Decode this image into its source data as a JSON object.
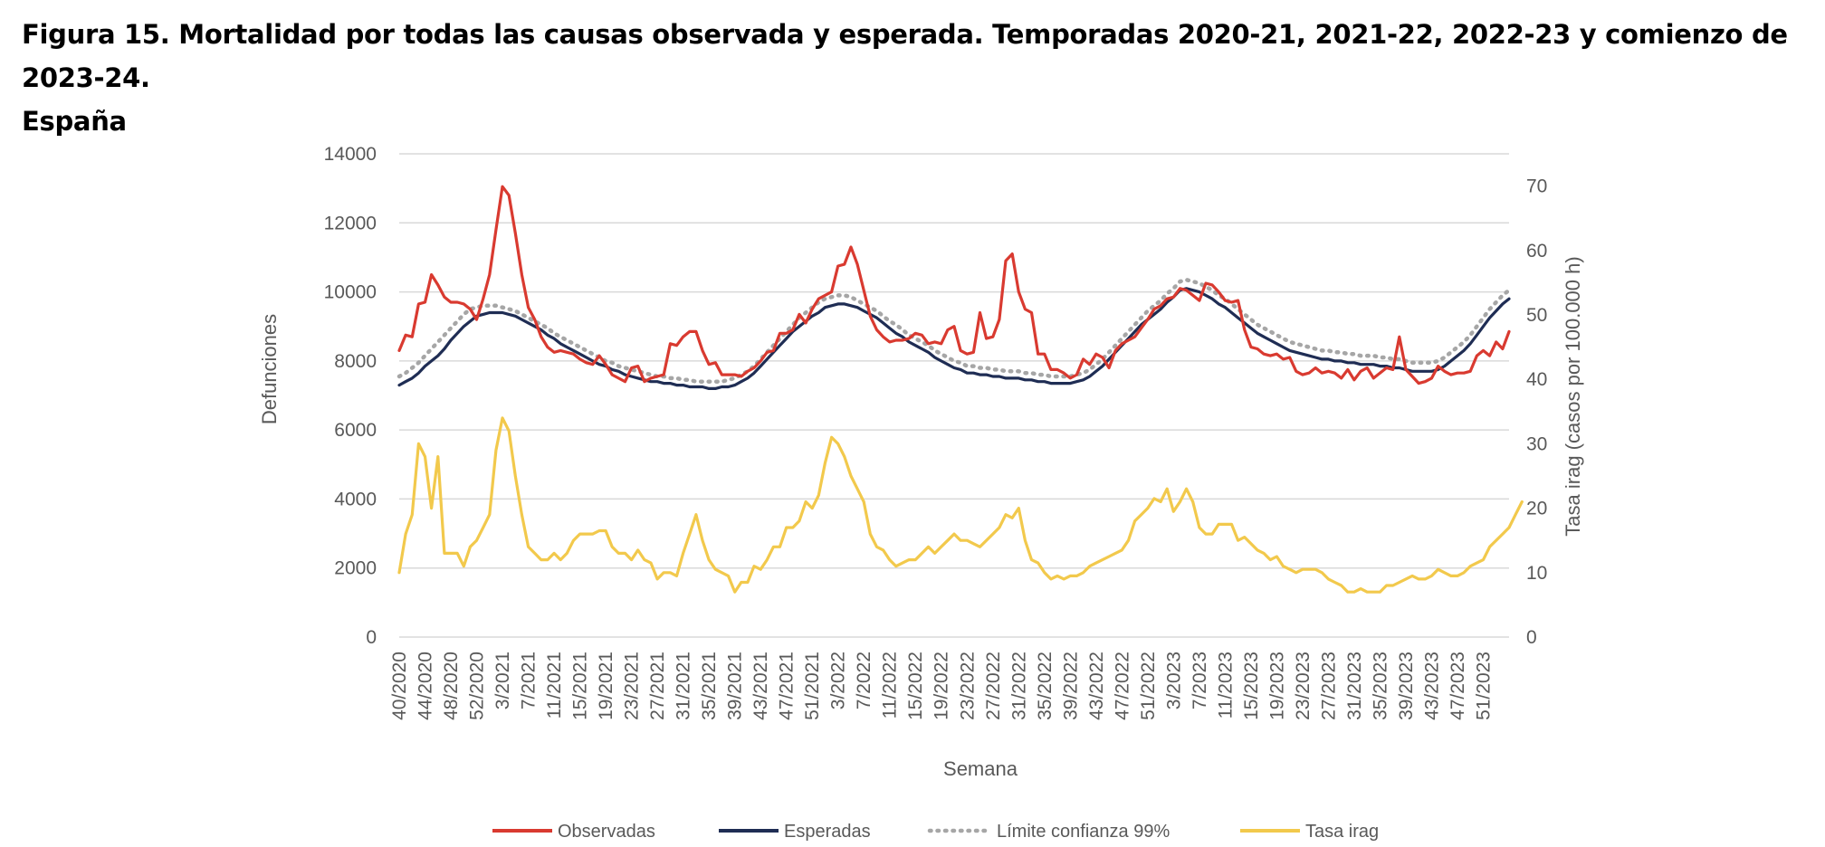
{
  "figure": {
    "title_line1": "Figura 15. Mortalidad por todas las causas observada y esperada. Temporadas 2020-21, 2021-22, 2022-23 y comienzo de 2023-24.",
    "title_line2": "España"
  },
  "chart_data": {
    "type": "line",
    "xlabel": "Semana",
    "ylabel": "Defunciones",
    "y2label": "Tasa irag (casos por 100.000 h)",
    "ylim": [
      0,
      14000
    ],
    "y2lim": [
      0,
      75
    ],
    "yticks": [
      0,
      2000,
      4000,
      6000,
      8000,
      10000,
      12000,
      14000
    ],
    "y2ticks": [
      0,
      10,
      20,
      30,
      40,
      50,
      60,
      70
    ],
    "x_first": "40/2020",
    "x_tick_labels": [
      "40/2020",
      "44/2020",
      "48/2020",
      "52/2020",
      "3/2021",
      "7/2021",
      "11/2021",
      "15/2021",
      "19/2021",
      "23/2021",
      "27/2021",
      "31/2021",
      "35/2021",
      "39/2021",
      "43/2021",
      "47/2021",
      "51/2021",
      "3/2022",
      "7/2022",
      "11/2022",
      "15/2022",
      "19/2022",
      "23/2022",
      "27/2022",
      "31/2022",
      "35/2022",
      "39/2022",
      "43/2022",
      "47/2022",
      "51/2022",
      "3/2023",
      "7/2023",
      "11/2023",
      "15/2023",
      "19/2023",
      "23/2023",
      "27/2023",
      "31/2023",
      "35/2023",
      "39/2023",
      "43/2023",
      "47/2023",
      "51/2023"
    ],
    "grid": true,
    "legend_position": "bottom",
    "colors": {
      "observadas": "#d93a30",
      "esperadas": "#1f2d54",
      "limite": "#a6a6a6",
      "tasa": "#f2c94c",
      "grid": "#d9d9d9",
      "tick": "#595959"
    },
    "series": [
      {
        "name": "Observadas",
        "axis": "left",
        "style": "solid",
        "values": [
          8300,
          8750,
          8700,
          9650,
          9700,
          10500,
          10200,
          9850,
          9700,
          9700,
          9650,
          9500,
          9200,
          9800,
          10500,
          11800,
          13050,
          12800,
          11700,
          10500,
          9550,
          9200,
          8700,
          8400,
          8250,
          8300,
          8250,
          8200,
          8050,
          7950,
          7900,
          8150,
          7900,
          7600,
          7500,
          7400,
          7800,
          7850,
          7400,
          7500,
          7550,
          7600,
          8500,
          8450,
          8700,
          8850,
          8850,
          8300,
          7900,
          7950,
          7600,
          7600,
          7600,
          7550,
          7700,
          7800,
          8000,
          8250,
          8300,
          8800,
          8800,
          8900,
          9350,
          9100,
          9500,
          9800,
          9900,
          10000,
          10750,
          10800,
          11300,
          10800,
          10050,
          9300,
          8900,
          8700,
          8550,
          8600,
          8600,
          8650,
          8800,
          8750,
          8500,
          8550,
          8500,
          8900,
          9000,
          8300,
          8200,
          8250,
          9400,
          8650,
          8700,
          9200,
          10900,
          11100,
          10000,
          9500,
          9400,
          8200,
          8200,
          7750,
          7750,
          7650,
          7500,
          7600,
          8050,
          7900,
          8200,
          8100,
          7800,
          8300,
          8500,
          8600,
          8700,
          8950,
          9200,
          9500,
          9600,
          9800,
          9850,
          10100,
          10050,
          9900,
          9750,
          10250,
          10200,
          10000,
          9750,
          9700,
          9750,
          8900,
          8400,
          8350,
          8200,
          8150,
          8200,
          8050,
          8100,
          7700,
          7600,
          7650,
          7800,
          7650,
          7700,
          7650,
          7500,
          7750,
          7450,
          7700,
          7800,
          7500,
          7650,
          7800,
          7750,
          8700,
          7750,
          7550,
          7350,
          7400,
          7500,
          7850,
          7700,
          7600,
          7650,
          7650,
          7700,
          8150,
          8300,
          8150,
          8550,
          8350,
          8850
        ]
      },
      {
        "name": "Esperadas",
        "axis": "left",
        "style": "solid",
        "values": [
          7300,
          7400,
          7500,
          7650,
          7850,
          8000,
          8150,
          8350,
          8600,
          8800,
          9000,
          9150,
          9300,
          9350,
          9400,
          9400,
          9400,
          9350,
          9300,
          9200,
          9100,
          9000,
          8900,
          8750,
          8650,
          8500,
          8400,
          8300,
          8200,
          8100,
          8000,
          7900,
          7850,
          7750,
          7700,
          7600,
          7550,
          7500,
          7450,
          7400,
          7400,
          7350,
          7350,
          7300,
          7300,
          7250,
          7250,
          7250,
          7200,
          7200,
          7250,
          7250,
          7300,
          7400,
          7500,
          7650,
          7850,
          8050,
          8250,
          8450,
          8650,
          8850,
          9000,
          9150,
          9300,
          9400,
          9550,
          9600,
          9650,
          9650,
          9600,
          9550,
          9450,
          9350,
          9250,
          9100,
          8950,
          8800,
          8700,
          8550,
          8450,
          8350,
          8250,
          8100,
          8000,
          7900,
          7800,
          7750,
          7650,
          7650,
          7600,
          7600,
          7550,
          7550,
          7500,
          7500,
          7500,
          7450,
          7450,
          7400,
          7400,
          7350,
          7350,
          7350,
          7350,
          7400,
          7450,
          7550,
          7700,
          7850,
          8050,
          8250,
          8450,
          8650,
          8850,
          9050,
          9200,
          9350,
          9500,
          9700,
          9850,
          10050,
          10100,
          10050,
          10000,
          9900,
          9800,
          9650,
          9550,
          9400,
          9250,
          9100,
          8950,
          8800,
          8700,
          8600,
          8500,
          8400,
          8300,
          8250,
          8200,
          8150,
          8100,
          8050,
          8050,
          8000,
          8000,
          7950,
          7950,
          7900,
          7900,
          7900,
          7850,
          7850,
          7800,
          7800,
          7750,
          7700,
          7700,
          7700,
          7700,
          7750,
          7850,
          8000,
          8150,
          8300,
          8500,
          8750,
          9000,
          9250,
          9450,
          9650,
          9800
        ]
      },
      {
        "name": "Límite confianza 99%",
        "axis": "left",
        "style": "dotted",
        "values": [
          7550,
          7650,
          7800,
          7950,
          8150,
          8350,
          8550,
          8750,
          8950,
          9150,
          9350,
          9500,
          9550,
          9600,
          9600,
          9600,
          9550,
          9500,
          9450,
          9350,
          9250,
          9150,
          9050,
          8950,
          8800,
          8700,
          8600,
          8500,
          8400,
          8300,
          8200,
          8100,
          8000,
          7950,
          7850,
          7800,
          7750,
          7700,
          7650,
          7600,
          7550,
          7550,
          7500,
          7500,
          7450,
          7450,
          7400,
          7400,
          7400,
          7400,
          7400,
          7450,
          7500,
          7600,
          7700,
          7850,
          8050,
          8250,
          8450,
          8650,
          8850,
          9050,
          9250,
          9400,
          9550,
          9700,
          9800,
          9850,
          9900,
          9900,
          9850,
          9750,
          9650,
          9550,
          9450,
          9300,
          9150,
          9050,
          8900,
          8750,
          8650,
          8550,
          8450,
          8300,
          8200,
          8100,
          8000,
          7950,
          7850,
          7850,
          7800,
          7800,
          7750,
          7750,
          7700,
          7700,
          7700,
          7650,
          7650,
          7600,
          7600,
          7550,
          7550,
          7550,
          7550,
          7600,
          7650,
          7750,
          7900,
          8050,
          8250,
          8450,
          8650,
          8850,
          9050,
          9250,
          9450,
          9600,
          9750,
          9950,
          10100,
          10300,
          10350,
          10300,
          10250,
          10150,
          10050,
          9900,
          9800,
          9650,
          9500,
          9350,
          9200,
          9050,
          8950,
          8850,
          8750,
          8650,
          8550,
          8500,
          8450,
          8400,
          8350,
          8300,
          8300,
          8250,
          8250,
          8200,
          8200,
          8150,
          8150,
          8150,
          8100,
          8100,
          8050,
          8050,
          8000,
          7950,
          7950,
          7950,
          7950,
          8000,
          8100,
          8250,
          8400,
          8550,
          8750,
          9000,
          9250,
          9500,
          9700,
          9900,
          10050
        ]
      },
      {
        "name": "Tasa irag",
        "axis": "right",
        "style": "solid",
        "values": [
          10,
          16,
          19,
          30,
          28,
          20,
          28,
          13,
          13,
          13,
          11,
          14,
          15,
          17,
          19,
          29,
          34,
          32,
          25,
          19,
          14,
          13,
          12,
          12,
          13,
          12,
          13,
          15,
          16,
          16,
          16,
          16.5,
          16.5,
          14,
          13,
          13,
          12,
          13.5,
          12,
          11.5,
          9,
          10,
          10,
          9.5,
          13,
          16,
          19,
          15,
          12,
          10.5,
          10,
          9.5,
          7,
          8.5,
          8.5,
          11,
          10.5,
          12,
          14,
          14,
          17,
          17,
          18,
          21,
          20,
          22,
          27,
          31,
          30,
          28,
          25,
          23,
          21,
          16,
          14,
          13.5,
          12,
          11,
          11.5,
          12,
          12,
          13,
          14,
          13,
          14,
          15,
          16,
          15,
          15,
          14.5,
          14,
          15,
          16,
          17,
          19,
          18.5,
          20,
          15,
          12,
          11.5,
          10,
          9,
          9.5,
          9,
          9.5,
          9.5,
          10,
          11,
          11.5,
          12,
          12.5,
          13,
          13.5,
          15,
          18,
          19,
          20,
          21.5,
          21,
          23,
          19.5,
          21,
          23,
          21,
          17,
          16,
          16,
          17.5,
          17.5,
          17.5,
          15,
          15.5,
          14.5,
          13.5,
          13,
          12,
          12.5,
          11,
          10.5,
          10,
          10.5,
          10.5,
          10.5,
          10,
          9,
          8.5,
          8,
          7,
          7,
          7.5,
          7,
          7,
          7,
          8,
          8,
          8.5,
          9,
          9.5,
          9,
          9,
          9.5,
          10.5,
          10,
          9.5,
          9.5,
          10,
          11,
          11.5,
          12,
          14,
          15,
          16,
          17,
          19,
          21
        ]
      }
    ]
  },
  "legend": {
    "observadas": "Observadas",
    "esperadas": "Esperadas",
    "limite": "Límite confianza 99%",
    "tasa": "Tasa irag"
  }
}
